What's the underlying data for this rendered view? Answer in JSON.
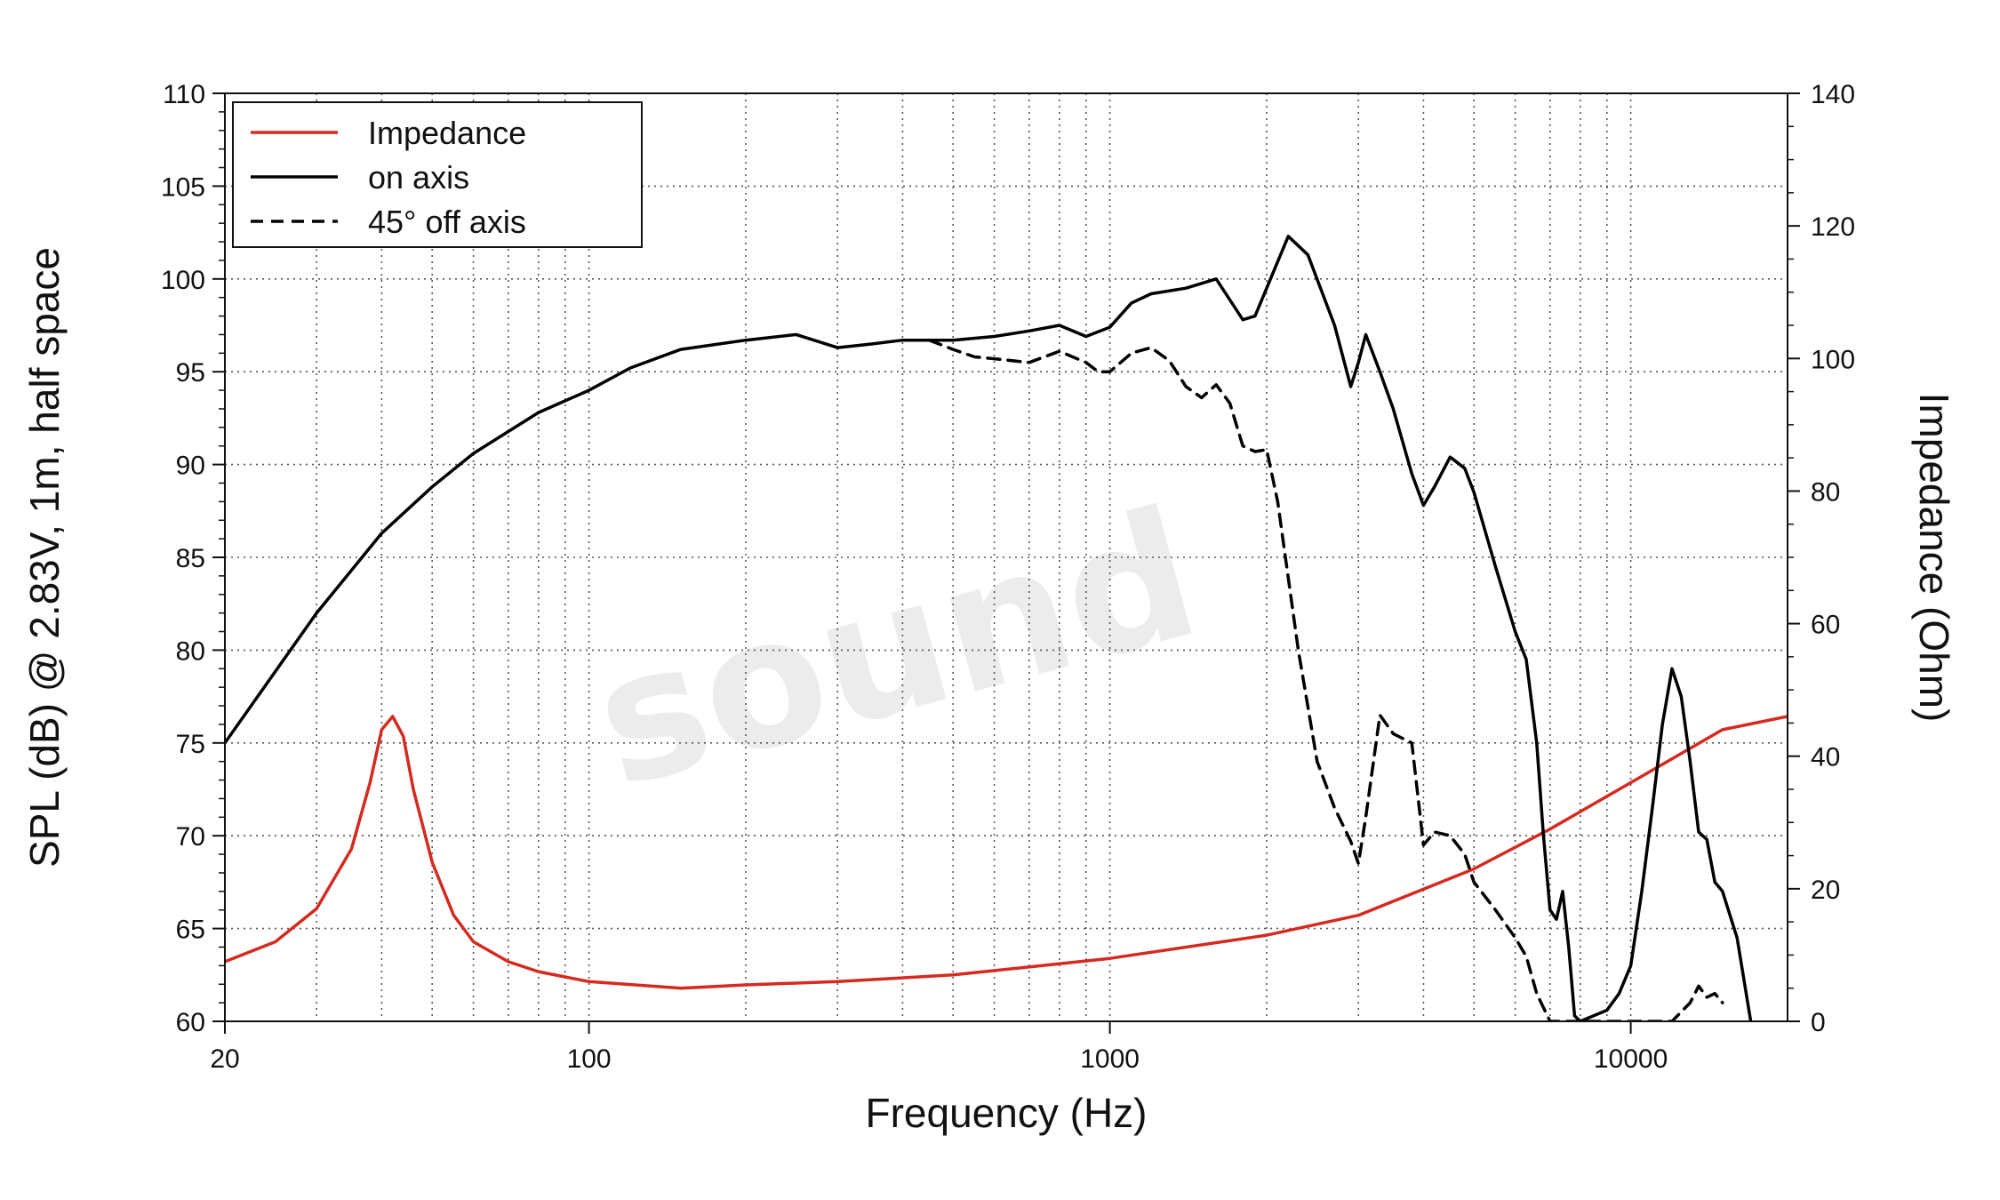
{
  "chart_data": {
    "type": "line",
    "xlabel": "Frequency (Hz)",
    "ylabel_left": "SPL (dB) @ 2.83V, 1m, half space",
    "ylabel_right": "Impedance (Ohm)",
    "x_scale": "log",
    "xlim": [
      20,
      20000
    ],
    "ylim_left": [
      60,
      110
    ],
    "ylim_right": [
      0,
      140
    ],
    "x_ticks": [
      20,
      100,
      1000,
      10000
    ],
    "x_tick_labels": [
      "20",
      "100",
      "1000",
      "10000"
    ],
    "y_left_ticks": [
      60,
      65,
      70,
      75,
      80,
      85,
      90,
      95,
      100,
      105,
      110
    ],
    "y_left_tick_labels": [
      "60",
      "65",
      "70",
      "75",
      "80",
      "85",
      "90",
      "95",
      "100",
      "105",
      "110"
    ],
    "y_right_ticks": [
      0,
      20,
      40,
      60,
      80,
      100,
      120,
      140
    ],
    "y_right_tick_labels": [
      "0",
      "20",
      "40",
      "60",
      "80",
      "100",
      "120",
      "140"
    ],
    "grid": true,
    "legend_position": "top-left",
    "watermark": "sound",
    "series": [
      {
        "name": "Impedance",
        "axis": "right",
        "color": "#d42a1f",
        "style": "solid",
        "x": [
          20,
          25,
          30,
          35,
          38,
          40,
          42,
          44,
          46,
          50,
          55,
          60,
          70,
          80,
          100,
          150,
          200,
          300,
          500,
          1000,
          2000,
          3000,
          5000,
          7000,
          10000,
          15000,
          20000
        ],
        "y": [
          9,
          12,
          17,
          26,
          36,
          44,
          46,
          43,
          35,
          24,
          16,
          12,
          9,
          7.5,
          6,
          5,
          5.5,
          6,
          7,
          9.5,
          13,
          16,
          23,
          29,
          36,
          44,
          46
        ]
      },
      {
        "name": "on axis",
        "axis": "left",
        "color": "#000000",
        "style": "solid",
        "x": [
          20,
          30,
          40,
          50,
          60,
          80,
          100,
          120,
          150,
          200,
          250,
          300,
          350,
          400,
          500,
          600,
          700,
          800,
          900,
          1000,
          1100,
          1200,
          1400,
          1600,
          1800,
          1900,
          2000,
          2200,
          2400,
          2700,
          2900,
          3000,
          3100,
          3300,
          3500,
          3800,
          4000,
          4200,
          4500,
          4800,
          5000,
          5500,
          6000,
          6300,
          6600,
          6800,
          7000,
          7200,
          7400,
          7600,
          7800,
          8000,
          9000,
          9500,
          10000,
          10500,
          11000,
          11500,
          12000,
          12500,
          13000,
          13500,
          14000,
          14500,
          15000,
          16000,
          17000
        ],
        "y": [
          75,
          82,
          86.3,
          88.8,
          90.6,
          92.8,
          94,
          95.2,
          96.2,
          96.7,
          97,
          96.3,
          96.5,
          96.7,
          96.7,
          96.9,
          97.2,
          97.5,
          96.9,
          97.4,
          98.7,
          99.2,
          99.5,
          100,
          97.8,
          98,
          99.5,
          102.3,
          101.3,
          97.5,
          94.2,
          95.5,
          97,
          95,
          93,
          89.5,
          87.8,
          88.8,
          90.4,
          89.8,
          88.5,
          84.5,
          81,
          79.5,
          75,
          70,
          66,
          65.5,
          67,
          64,
          60.3,
          60,
          60.6,
          61.5,
          63,
          67,
          71.5,
          76,
          79,
          77.5,
          74,
          70.2,
          69.8,
          67.5,
          67,
          64.5,
          60
        ]
      },
      {
        "name": "45° off axis",
        "axis": "left",
        "color": "#000000",
        "style": "dashed",
        "x": [
          450,
          500,
          550,
          600,
          700,
          800,
          900,
          950,
          1000,
          1100,
          1200,
          1300,
          1400,
          1500,
          1600,
          1700,
          1800,
          1900,
          2000,
          2100,
          2300,
          2500,
          2700,
          2900,
          3000,
          3100,
          3300,
          3500,
          3800,
          4000,
          4200,
          4500,
          4800,
          5000,
          5500,
          6000,
          6300,
          6600,
          7000,
          12000,
          13000,
          13500,
          14000,
          14500,
          15000
        ],
        "y": [
          96.7,
          96.2,
          95.8,
          95.7,
          95.5,
          96.1,
          95.5,
          95,
          95,
          96,
          96.3,
          95.6,
          94.2,
          93.6,
          94.3,
          93.3,
          91,
          90.7,
          90.8,
          88,
          80,
          74,
          71.5,
          69.7,
          68.5,
          71,
          76.5,
          75.5,
          75,
          69.5,
          70.2,
          70,
          69,
          67.5,
          66,
          64.5,
          63.5,
          61.5,
          60,
          60,
          61,
          61.9,
          61.3,
          61.5,
          61
        ]
      }
    ]
  }
}
